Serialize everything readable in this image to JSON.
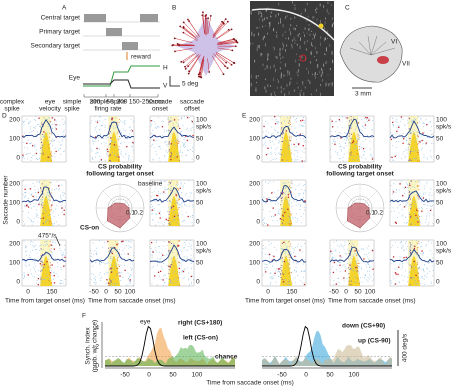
{
  "panel_a": {
    "label": "A",
    "rows": [
      "Central target",
      "Primary target",
      "Secondary target"
    ],
    "reward": "reward",
    "eye": "Eye",
    "h": "H",
    "v": "V",
    "timing": [
      "200",
      "50",
      "200",
      "150-250 ms"
    ]
  },
  "panel_b": {
    "label": "B",
    "scale": "5 deg"
  },
  "panel_c": {
    "label": "C",
    "lobules": [
      "VI",
      "VII"
    ],
    "scale": "3 mm"
  },
  "panel_d": {
    "label": "D",
    "legend": {
      "complex_spike": [
        "complex",
        "spike"
      ],
      "eye_velocity": [
        "eye",
        "velocity"
      ],
      "simple_spike": [
        "simple",
        "spike"
      ],
      "firing_rate": [
        "simple spike",
        "firing rate"
      ],
      "saccade_onset": [
        "saccade",
        "onset"
      ],
      "saccade_offset": [
        "saccade",
        "offset"
      ]
    },
    "y_label": "Saccade number",
    "raster_ticks": [
      "200",
      "100",
      "0"
    ],
    "rate_ticks": [
      "100",
      "50",
      "0"
    ],
    "rate_unit": "spk/s",
    "polar": {
      "title": [
        "CS probability",
        "following target onset"
      ],
      "baseline": "baseline",
      "rings": [
        "0.1",
        "0.2"
      ],
      "cs_on": "CS-on"
    },
    "velocity_scale": "475°/s",
    "x1": {
      "ticks": [
        "0",
        "150"
      ],
      "label": "Time from target onset (ms)"
    },
    "x2": {
      "ticks": [
        "-50",
        "0",
        "50",
        "100"
      ],
      "label": "Time from saccade onset (ms)"
    }
  },
  "panel_e": {
    "label": "E",
    "raster_ticks": [
      "200",
      "100",
      "0"
    ],
    "rate_ticks": [
      "100",
      "50",
      "0"
    ],
    "rate_unit": "spk/s",
    "polar": {
      "title": [
        "CS probability",
        "following target onset"
      ],
      "rings": [
        "0.1",
        "0.2"
      ]
    },
    "x1": {
      "ticks": [
        "0",
        "150"
      ],
      "label": "Time from target onset (ms)"
    },
    "x2": {
      "ticks": [
        "-50",
        "0",
        "50",
        "100"
      ],
      "label": "Time from saccade onset (ms)"
    }
  },
  "panel_f": {
    "label": "F",
    "y_label": [
      "Synch. index",
      "(prob. w/r chance)"
    ],
    "y_ticks": [
      "4",
      "2",
      "0"
    ],
    "left": {
      "eye": "eye",
      "right": "right (CS+180)",
      "left": "left (CS-on)",
      "chance": "chance"
    },
    "right": {
      "down": "down (CS+90)",
      "up": "up (CS-90)",
      "scale": "400 deg/s"
    },
    "x_ticks": [
      "-50",
      "0",
      "50",
      "100"
    ],
    "x_label": "Time from saccade onset (ms)"
  }
}
